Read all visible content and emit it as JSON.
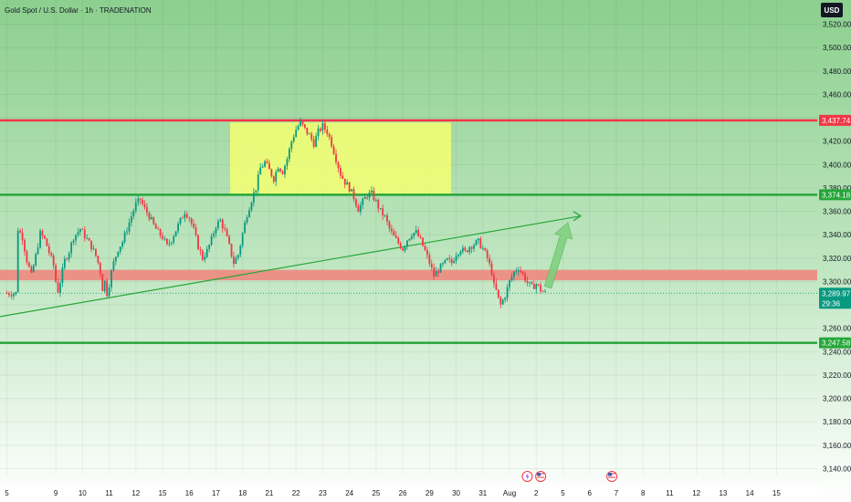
{
  "header": {
    "title": "Gold Spot / U.S. Dollar · 1h · TRADENATION",
    "currency": "USD"
  },
  "chart_data": {
    "type": "candlestick",
    "title": "Gold Spot / U.S. Dollar · 1h · TRADENATION",
    "ylim": [
      3130,
      3530
    ],
    "y_ticks": [
      3140,
      3160,
      3180,
      3200,
      3220,
      3240,
      3260,
      3280,
      3300,
      3320,
      3340,
      3360,
      3380,
      3400,
      3420,
      3440,
      3460,
      3480,
      3500,
      3520
    ],
    "y_tick_labels": [
      "3,140.00",
      "3,160.00",
      "3,180.00",
      "3,200.00",
      "3,220.00",
      "3,240.00",
      "3,260.00",
      "3,280.00",
      "3,300.00",
      "3,320.00",
      "3,340.00",
      "3,360.00",
      "3,380.00",
      "3,400.00",
      "3,420.00",
      "3,440.00",
      "3,460.00",
      "3,480.00",
      "3,500.00",
      "3,520.00"
    ],
    "x_ticks": [
      "5",
      "9",
      "10",
      "11",
      "12",
      "15",
      "16",
      "17",
      "18",
      "21",
      "22",
      "23",
      "24",
      "25",
      "26",
      "29",
      "30",
      "31",
      "Aug",
      "2",
      "5",
      "6",
      "7",
      "8",
      "11",
      "12",
      "13",
      "14",
      "15"
    ],
    "grid": true,
    "price_path": [
      [
        5,
        3345
      ],
      [
        7,
        3338
      ],
      [
        9,
        3318
      ],
      [
        11,
        3305
      ],
      [
        13,
        3322
      ],
      [
        15,
        3341
      ],
      [
        17,
        3336
      ],
      [
        19,
        3325
      ],
      [
        21,
        3314
      ],
      [
        22,
        3300
      ],
      [
        23,
        3292
      ],
      [
        24,
        3300
      ],
      [
        26,
        3318
      ],
      [
        28,
        3326
      ],
      [
        30,
        3338
      ],
      [
        33,
        3345
      ],
      [
        36,
        3336
      ],
      [
        38,
        3330
      ],
      [
        40,
        3322
      ],
      [
        41,
        3316
      ],
      [
        42,
        3308
      ],
      [
        43,
        3294
      ],
      [
        44,
        3300
      ],
      [
        45,
        3290
      ],
      [
        46,
        3298
      ],
      [
        47,
        3308
      ],
      [
        48,
        3316
      ],
      [
        49,
        3322
      ],
      [
        50,
        3328
      ],
      [
        52,
        3334
      ],
      [
        54,
        3345
      ],
      [
        56,
        3356
      ],
      [
        58,
        3366
      ],
      [
        60,
        3370
      ],
      [
        62,
        3362
      ],
      [
        64,
        3356
      ],
      [
        66,
        3348
      ],
      [
        68,
        3342
      ],
      [
        70,
        3338
      ],
      [
        72,
        3330
      ],
      [
        74,
        3336
      ],
      [
        76,
        3344
      ],
      [
        78,
        3352
      ],
      [
        80,
        3360
      ],
      [
        82,
        3355
      ],
      [
        84,
        3344
      ],
      [
        86,
        3330
      ],
      [
        88,
        3320
      ],
      [
        90,
        3326
      ],
      [
        92,
        3336
      ],
      [
        94,
        3348
      ],
      [
        96,
        3352
      ],
      [
        98,
        3343
      ],
      [
        100,
        3330
      ],
      [
        102,
        3316
      ],
      [
        104,
        3323
      ],
      [
        106,
        3341
      ],
      [
        108,
        3358
      ],
      [
        110,
        3370
      ],
      [
        112,
        3380
      ],
      [
        114,
        3397
      ],
      [
        116,
        3402
      ],
      [
        118,
        3395
      ],
      [
        120,
        3388
      ],
      [
        122,
        3399
      ],
      [
        124,
        3394
      ],
      [
        126,
        3405
      ],
      [
        128,
        3420
      ],
      [
        130,
        3430
      ],
      [
        132,
        3436
      ],
      [
        134,
        3430
      ],
      [
        136,
        3425
      ],
      [
        138,
        3418
      ],
      [
        140,
        3428
      ],
      [
        142,
        3433
      ],
      [
        144,
        3428
      ],
      [
        146,
        3418
      ],
      [
        148,
        3405
      ],
      [
        150,
        3392
      ],
      [
        152,
        3385
      ],
      [
        154,
        3380
      ],
      [
        156,
        3372
      ],
      [
        158,
        3362
      ],
      [
        160,
        3368
      ],
      [
        162,
        3374
      ],
      [
        164,
        3375
      ],
      [
        166,
        3368
      ],
      [
        168,
        3360
      ],
      [
        170,
        3355
      ],
      [
        172,
        3345
      ],
      [
        174,
        3338
      ],
      [
        176,
        3333
      ],
      [
        178,
        3328
      ],
      [
        180,
        3336
      ],
      [
        182,
        3341
      ],
      [
        184,
        3342
      ],
      [
        186,
        3335
      ],
      [
        188,
        3326
      ],
      [
        190,
        3316
      ],
      [
        192,
        3305
      ],
      [
        194,
        3310
      ],
      [
        196,
        3314
      ],
      [
        198,
        3318
      ],
      [
        200,
        3316
      ],
      [
        202,
        3324
      ],
      [
        204,
        3328
      ],
      [
        206,
        3325
      ],
      [
        208,
        3330
      ],
      [
        210,
        3332
      ],
      [
        212,
        3334
      ],
      [
        214,
        3328
      ],
      [
        216,
        3320
      ],
      [
        218,
        3308
      ],
      [
        219,
        3296
      ],
      [
        220,
        3292
      ],
      [
        221,
        3285
      ],
      [
        222,
        3280
      ],
      [
        224,
        3288
      ],
      [
        226,
        3300
      ],
      [
        228,
        3308
      ],
      [
        230,
        3312
      ],
      [
        232,
        3306
      ],
      [
        234,
        3299
      ],
      [
        236,
        3295
      ],
      [
        238,
        3298
      ],
      [
        240,
        3293
      ],
      [
        242,
        3290
      ]
    ],
    "levels": [
      {
        "price": 3437.74,
        "label": "3,437.74",
        "color": "#f23645"
      },
      {
        "price": 3374.18,
        "label": "3,374.18",
        "color": "#26a63a"
      },
      {
        "price": 3247.58,
        "label": "3,247.58",
        "color": "#26a63a"
      }
    ],
    "current_price": {
      "price": 3289.97,
      "label": "3,289.97",
      "countdown": "29:36",
      "color": "#089981"
    },
    "resistance_zone": {
      "from_price": 3374,
      "to_price": 3436,
      "color": "#f5ff72"
    },
    "support_zone": {
      "from_price": 3301,
      "to_price": 3310,
      "color": "#f2837d"
    },
    "trendline": {
      "from": [
        0,
        3270
      ],
      "to": [
        258,
        3356
      ],
      "color": "#26a63a"
    },
    "projection_arrow": {
      "from": [
        242,
        3292
      ],
      "to": [
        258,
        3352
      ],
      "color": "#7ccf7c"
    },
    "events": [
      {
        "at": 234,
        "icon": "lightning-icon"
      },
      {
        "at": 240,
        "icon": "us-flag-icon"
      },
      {
        "at": 272,
        "icon": "us-flag-icon"
      }
    ],
    "colors": {
      "up": "#089981",
      "down": "#f23645",
      "bg_top": "#8cd08f",
      "bg_bottom": "#ffffff"
    }
  }
}
